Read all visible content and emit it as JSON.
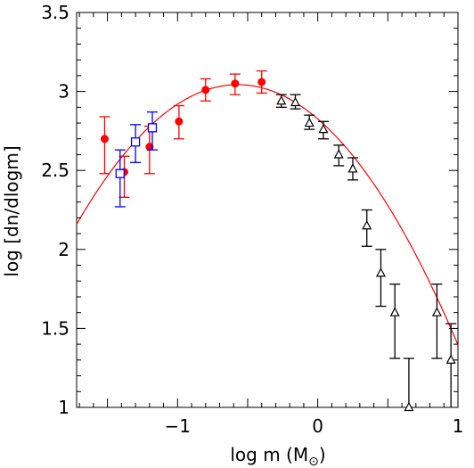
{
  "chart_data": {
    "type": "scatter",
    "title": "",
    "xlabel": "log m (M",
    "xlabel_symbol": "⊙",
    "xlabel_close": ")",
    "ylabel": "log [dn/dlogm]",
    "xlim": [
      -1.72,
      1.0
    ],
    "ylim": [
      1.0,
      3.5
    ],
    "x_ticks": [
      {
        "value": -1,
        "label": "−1"
      },
      {
        "value": 0,
        "label": "0"
      },
      {
        "value": 1,
        "label": "1"
      }
    ],
    "y_ticks": [
      {
        "value": 1,
        "label": "1"
      },
      {
        "value": 1.5,
        "label": "1.5"
      },
      {
        "value": 2,
        "label": "2"
      },
      {
        "value": 2.5,
        "label": "2.5"
      },
      {
        "value": 3,
        "label": "3"
      },
      {
        "value": 3.5,
        "label": "3.5"
      }
    ],
    "grid": false,
    "series": [
      {
        "marker": "filled-circle",
        "color": "#ff0000",
        "points": [
          {
            "x": -1.52,
            "y": 2.7,
            "lo": 2.48,
            "hi": 2.84
          },
          {
            "x": -1.38,
            "y": 2.49,
            "lo": 2.33,
            "hi": 2.59
          },
          {
            "x": -1.2,
            "y": 2.65,
            "lo": 2.48,
            "hi": 2.78
          },
          {
            "x": -0.99,
            "y": 2.81,
            "lo": 2.7,
            "hi": 2.91
          },
          {
            "x": -0.8,
            "y": 3.01,
            "lo": 2.94,
            "hi": 3.08
          },
          {
            "x": -0.59,
            "y": 3.05,
            "lo": 2.98,
            "hi": 3.11
          },
          {
            "x": -0.4,
            "y": 3.06,
            "lo": 2.99,
            "hi": 3.13
          }
        ]
      },
      {
        "marker": "open-square",
        "color": "#0000ff",
        "points": [
          {
            "x": -1.41,
            "y": 2.48,
            "lo": 2.27,
            "hi": 2.63
          },
          {
            "x": -1.3,
            "y": 2.68,
            "lo": 2.55,
            "hi": 2.79
          },
          {
            "x": -1.18,
            "y": 2.77,
            "lo": 2.63,
            "hi": 2.87
          }
        ]
      },
      {
        "marker": "open-triangle",
        "color": "#000000",
        "points": [
          {
            "x": -0.26,
            "y": 2.94,
            "lo": 2.9,
            "hi": 2.98
          },
          {
            "x": -0.16,
            "y": 2.93,
            "lo": 2.89,
            "hi": 2.98
          },
          {
            "x": -0.06,
            "y": 2.8,
            "lo": 2.76,
            "hi": 2.85
          },
          {
            "x": 0.04,
            "y": 2.76,
            "lo": 2.7,
            "hi": 2.81
          },
          {
            "x": 0.15,
            "y": 2.6,
            "lo": 2.53,
            "hi": 2.66
          },
          {
            "x": 0.25,
            "y": 2.51,
            "lo": 2.44,
            "hi": 2.58
          },
          {
            "x": 0.35,
            "y": 2.15,
            "lo": 2.02,
            "hi": 2.25
          },
          {
            "x": 0.45,
            "y": 1.85,
            "lo": 1.64,
            "hi": 2.0
          },
          {
            "x": 0.55,
            "y": 1.6,
            "lo": 1.31,
            "hi": 1.78
          },
          {
            "x": 0.65,
            "y": 1.0,
            "lo": 0.6,
            "hi": 1.31
          },
          {
            "x": 0.85,
            "y": 1.6,
            "lo": 1.31,
            "hi": 1.78
          },
          {
            "x": 0.95,
            "y": 1.3,
            "lo": 0.9,
            "hi": 1.53
          }
        ]
      }
    ],
    "fit_curve": {
      "color": "#ff0000",
      "peak_x": -0.57,
      "peak_y": 3.043,
      "sigma": 0.57,
      "x_range": [
        -1.72,
        1.0
      ]
    }
  }
}
